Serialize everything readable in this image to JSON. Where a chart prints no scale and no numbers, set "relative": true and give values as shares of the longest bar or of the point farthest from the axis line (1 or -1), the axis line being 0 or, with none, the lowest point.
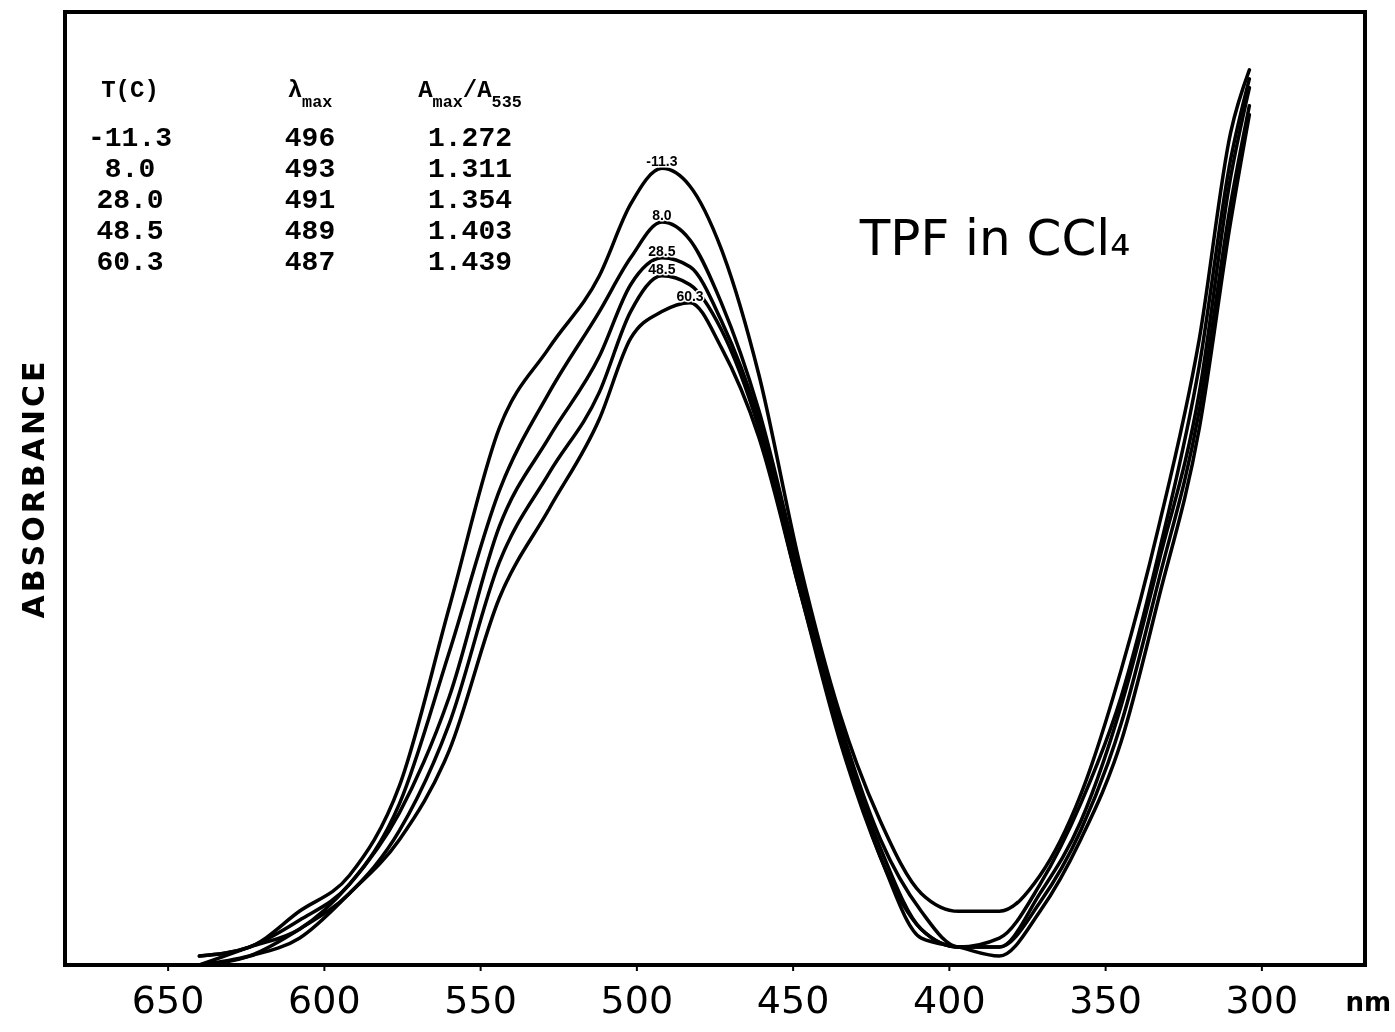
{
  "chart_data": {
    "type": "line",
    "relative": true,
    "title": "TPF in CCl₄",
    "xlabel": "nm",
    "ylabel": "ABSORBANCE",
    "xlim": [
      683,
      267
    ],
    "xticks": [
      650,
      600,
      550,
      500,
      450,
      400,
      350,
      300
    ],
    "x": [
      640,
      624,
      608,
      592,
      576,
      560,
      544,
      528,
      512,
      502,
      492,
      483,
      473,
      461,
      448,
      435,
      422,
      409,
      397,
      384,
      371,
      358,
      345,
      333,
      320,
      310,
      304
    ],
    "series": [
      {
        "name": "-11.3",
        "color": "#000000",
        "values": [
          0.01,
          0.02,
          0.06,
          0.1,
          0.2,
          0.4,
          0.6,
          0.69,
          0.77,
          0.85,
          0.89,
          0.87,
          0.8,
          0.66,
          0.45,
          0.28,
          0.16,
          0.08,
          0.06,
          0.06,
          0.1,
          0.19,
          0.33,
          0.49,
          0.7,
          0.93,
          1.0
        ]
      },
      {
        "name": "8.0",
        "color": "#000000",
        "values": [
          0.01,
          0.02,
          0.05,
          0.09,
          0.18,
          0.35,
          0.53,
          0.64,
          0.73,
          0.79,
          0.83,
          0.81,
          0.74,
          0.62,
          0.44,
          0.27,
          0.14,
          0.06,
          0.02,
          0.03,
          0.09,
          0.18,
          0.3,
          0.46,
          0.67,
          0.9,
          0.99
        ]
      },
      {
        "name": "28.5",
        "color": "#000000",
        "values": [
          0.0,
          0.02,
          0.04,
          0.09,
          0.17,
          0.3,
          0.49,
          0.59,
          0.68,
          0.76,
          0.79,
          0.78,
          0.72,
          0.61,
          0.43,
          0.26,
          0.13,
          0.04,
          0.02,
          0.02,
          0.08,
          0.16,
          0.29,
          0.45,
          0.64,
          0.88,
          0.98
        ]
      },
      {
        "name": "48.5",
        "color": "#000000",
        "values": [
          0.0,
          0.01,
          0.04,
          0.08,
          0.15,
          0.27,
          0.45,
          0.55,
          0.64,
          0.73,
          0.77,
          0.76,
          0.71,
          0.6,
          0.42,
          0.26,
          0.12,
          0.04,
          0.02,
          0.02,
          0.07,
          0.15,
          0.27,
          0.43,
          0.62,
          0.85,
          0.96
        ]
      },
      {
        "name": "60.3",
        "color": "#000000",
        "values": [
          0.0,
          0.01,
          0.03,
          0.08,
          0.14,
          0.24,
          0.41,
          0.51,
          0.61,
          0.7,
          0.73,
          0.74,
          0.69,
          0.59,
          0.42,
          0.25,
          0.12,
          0.03,
          0.02,
          0.01,
          0.06,
          0.14,
          0.25,
          0.41,
          0.6,
          0.83,
          0.95
        ]
      }
    ],
    "annotations": [
      "T(C)",
      "λ$_{max}$",
      "A$_{max}$/A$_{535}$",
      "-11.3",
      "496",
      "1.272",
      "8.0",
      "493",
      "1.311",
      "28.0",
      "491",
      "1.354",
      "48.5",
      "489",
      "1.403",
      "60.3",
      "487",
      "1.439"
    ]
  }
}
